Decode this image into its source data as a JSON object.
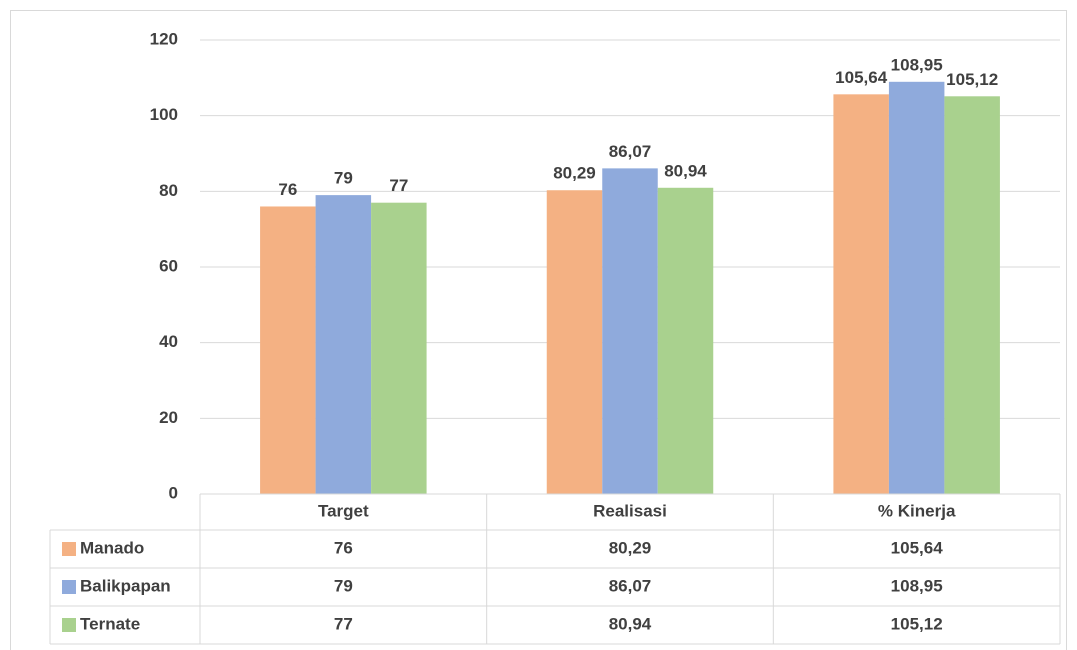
{
  "chart_data": {
    "type": "bar",
    "categories": [
      "Target",
      "Realisasi",
      "% Kinerja"
    ],
    "series": [
      {
        "name": "Manado",
        "color": "#f4b183",
        "values": [
          76,
          80.29,
          105.64
        ],
        "value_labels": [
          "76",
          "80,29",
          "105,64"
        ]
      },
      {
        "name": "Balikpapan",
        "color": "#8faadc",
        "values": [
          79,
          86.07,
          108.95
        ],
        "value_labels": [
          "79",
          "86,07",
          "108,95"
        ]
      },
      {
        "name": "Ternate",
        "color": "#a9d18e",
        "values": [
          77,
          80.94,
          105.12
        ],
        "value_labels": [
          "77",
          "80,94",
          "105,12"
        ]
      }
    ],
    "ylim": [
      0,
      120
    ],
    "yticks": [
      0,
      20,
      40,
      60,
      80,
      100,
      120
    ],
    "grid": true
  }
}
